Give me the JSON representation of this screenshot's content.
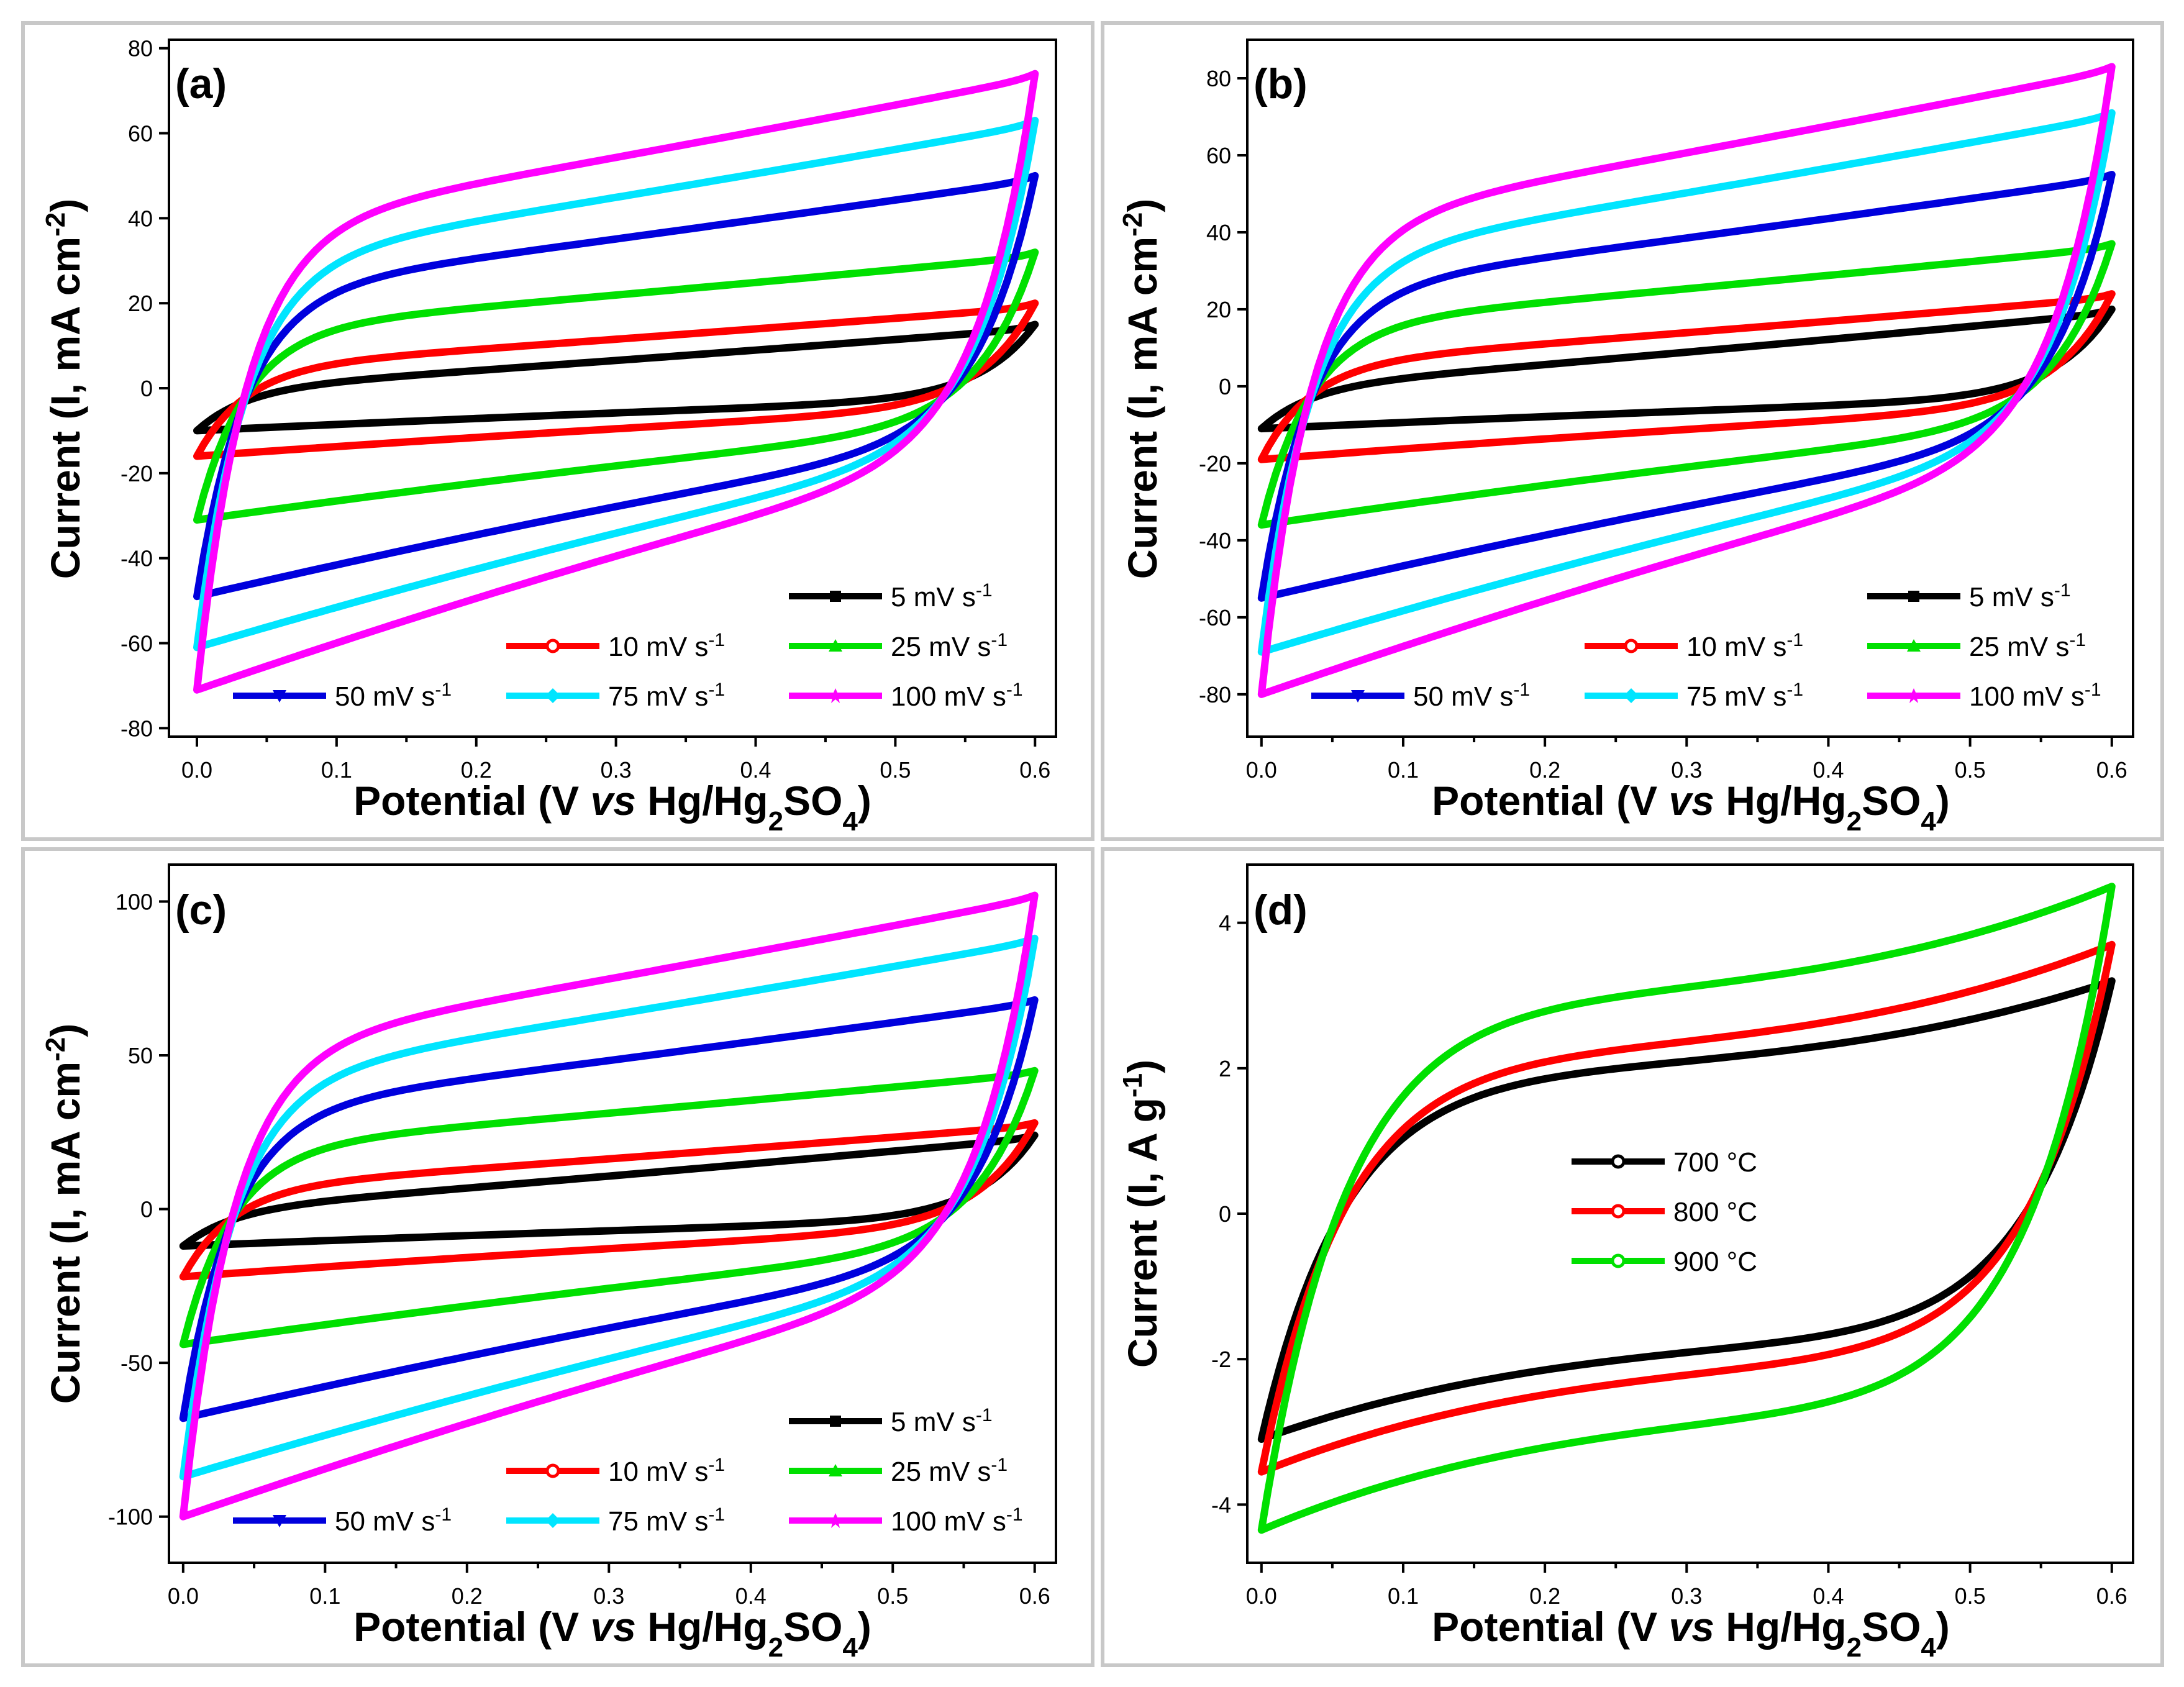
{
  "chart_data": [
    {
      "panel": "(a)",
      "type": "line",
      "title": "",
      "xlabel": "Potential (V vs Hg/Hg2SO4)",
      "ylabel": "Current (I, mA cm-2)",
      "xlim": [
        -0.02,
        0.615
      ],
      "ylim": [
        -82,
        82
      ],
      "xticks": [
        "0.0",
        "0.1",
        "0.2",
        "0.3",
        "0.4",
        "0.5",
        "0.6"
      ],
      "yticks": [
        "-80",
        "-60",
        "-40",
        "-20",
        "0",
        "20",
        "40",
        "60",
        "80"
      ],
      "legend": "bottom-right, three rows",
      "series": [
        {
          "name": "5 mV s-1",
          "color": "#000000",
          "marker": "square",
          "anodic_start": 0,
          "vertex_high": 15,
          "vertex_low": -10,
          "cathodic_mid": -8
        },
        {
          "name": "10 mV s-1",
          "color": "#ff0000",
          "marker": "circle",
          "anodic_start": 5,
          "vertex_high": 20,
          "vertex_low": -16,
          "cathodic_mid": -14
        },
        {
          "name": "25 mV s-1",
          "color": "#00e000",
          "marker": "triangle",
          "anodic_start": 14,
          "vertex_high": 32,
          "vertex_low": -31,
          "cathodic_mid": -26
        },
        {
          "name": "50 mV s-1",
          "color": "#0000dd",
          "marker": "triangle-down",
          "anodic_start": 23,
          "vertex_high": 50,
          "vertex_low": -49,
          "cathodic_mid": -36
        },
        {
          "name": "75 mV s-1",
          "color": "#00e5ff",
          "marker": "diamond",
          "anodic_start": 30,
          "vertex_high": 63,
          "vertex_low": -61,
          "cathodic_mid": -42
        },
        {
          "name": "100 mV s-1",
          "color": "#ff00ff",
          "marker": "star",
          "anodic_start": 38,
          "vertex_high": 74,
          "vertex_low": -71,
          "cathodic_mid": -48
        }
      ]
    },
    {
      "panel": "(b)",
      "type": "line",
      "title": "",
      "xlabel": "Potential (V vs Hg/Hg2SO4)",
      "ylabel": "Current (I, mA cm-2)",
      "xlim": [
        -0.01,
        0.615
      ],
      "ylim": [
        -91,
        90
      ],
      "xticks": [
        "0.0",
        "0.1",
        "0.2",
        "0.3",
        "0.4",
        "0.5",
        "0.6"
      ],
      "yticks": [
        "-80",
        "-60",
        "-40",
        "-20",
        "0",
        "20",
        "40",
        "60",
        "80"
      ],
      "legend": "bottom-right, three rows",
      "series": [
        {
          "name": "5 mV s-1",
          "color": "#000000",
          "marker": "square",
          "anodic_start": 0,
          "vertex_high": 20,
          "vertex_low": -11,
          "cathodic_mid": -9
        },
        {
          "name": "10 mV s-1",
          "color": "#ff0000",
          "marker": "circle",
          "anodic_start": 6,
          "vertex_high": 24,
          "vertex_low": -19,
          "cathodic_mid": -16
        },
        {
          "name": "25 mV s-1",
          "color": "#00e000",
          "marker": "triangle",
          "anodic_start": 16,
          "vertex_high": 37,
          "vertex_low": -36,
          "cathodic_mid": -29
        },
        {
          "name": "50 mV s-1",
          "color": "#0000dd",
          "marker": "triangle-down",
          "anodic_start": 25,
          "vertex_high": 55,
          "vertex_low": -55,
          "cathodic_mid": -40
        },
        {
          "name": "75 mV s-1",
          "color": "#00e5ff",
          "marker": "diamond",
          "anodic_start": 33,
          "vertex_high": 71,
          "vertex_low": -69,
          "cathodic_mid": -47
        },
        {
          "name": "100 mV s-1",
          "color": "#ff00ff",
          "marker": "star",
          "anodic_start": 42,
          "vertex_high": 83,
          "vertex_low": -80,
          "cathodic_mid": -54
        }
      ]
    },
    {
      "panel": "(c)",
      "type": "line",
      "title": "",
      "xlabel": "Potential (V vs Hg/Hg2SO4)",
      "ylabel": "Current (I, mA cm-2)",
      "xlim": [
        -0.01,
        0.615
      ],
      "ylim": [
        -115,
        112
      ],
      "xticks": [
        "0.0",
        "0.1",
        "0.2",
        "0.3",
        "0.4",
        "0.5",
        "0.6"
      ],
      "yticks": [
        "-100",
        "-50",
        "0",
        "50",
        "100"
      ],
      "legend": "bottom-right, three rows",
      "series": [
        {
          "name": "5 mV s-1",
          "color": "#000000",
          "marker": "square",
          "anodic_start": 0,
          "vertex_high": 24,
          "vertex_low": -12,
          "cathodic_mid": -10
        },
        {
          "name": "10 mV s-1",
          "color": "#ff0000",
          "marker": "circle",
          "anodic_start": 7,
          "vertex_high": 28,
          "vertex_low": -22,
          "cathodic_mid": -18
        },
        {
          "name": "25 mV s-1",
          "color": "#00e000",
          "marker": "triangle",
          "anodic_start": 20,
          "vertex_high": 45,
          "vertex_low": -44,
          "cathodic_mid": -36
        },
        {
          "name": "50 mV s-1",
          "color": "#0000dd",
          "marker": "triangle-down",
          "anodic_start": 32,
          "vertex_high": 68,
          "vertex_low": -68,
          "cathodic_mid": -50
        },
        {
          "name": "75 mV s-1",
          "color": "#00e5ff",
          "marker": "diamond",
          "anodic_start": 42,
          "vertex_high": 88,
          "vertex_low": -87,
          "cathodic_mid": -60
        },
        {
          "name": "100 mV s-1",
          "color": "#ff00ff",
          "marker": "star",
          "anodic_start": 52,
          "vertex_high": 102,
          "vertex_low": -100,
          "cathodic_mid": -68
        }
      ]
    },
    {
      "panel": "(d)",
      "type": "line",
      "title": "",
      "xlabel": "Potential (V vs Hg/Hg2SO4)",
      "ylabel": "Current (I, A g-1)",
      "xlim": [
        -0.01,
        0.615
      ],
      "ylim": [
        -4.8,
        4.8
      ],
      "xticks": [
        "0.0",
        "0.1",
        "0.2",
        "0.3",
        "0.4",
        "0.5",
        "0.6"
      ],
      "yticks": [
        "-4",
        "-2",
        "0",
        "2",
        "4"
      ],
      "legend": "center-left, stacked",
      "series": [
        {
          "name": "700 °C",
          "color": "#000000",
          "marker": "circle",
          "vertex_high": 3.2,
          "vertex_low": -3.1,
          "plateau_high": 2.4,
          "plateau_low": -2.2
        },
        {
          "name": "800 °C",
          "color": "#ff0000",
          "marker": "circle",
          "vertex_high": 3.7,
          "vertex_low": -3.55,
          "plateau_high": 2.65,
          "plateau_low": -2.5
        },
        {
          "name": "900 °C",
          "color": "#00e000",
          "marker": "circle",
          "vertex_high": 4.5,
          "vertex_low": -4.35,
          "plateau_high": 3.4,
          "plateau_low": -3.2
        }
      ]
    }
  ]
}
